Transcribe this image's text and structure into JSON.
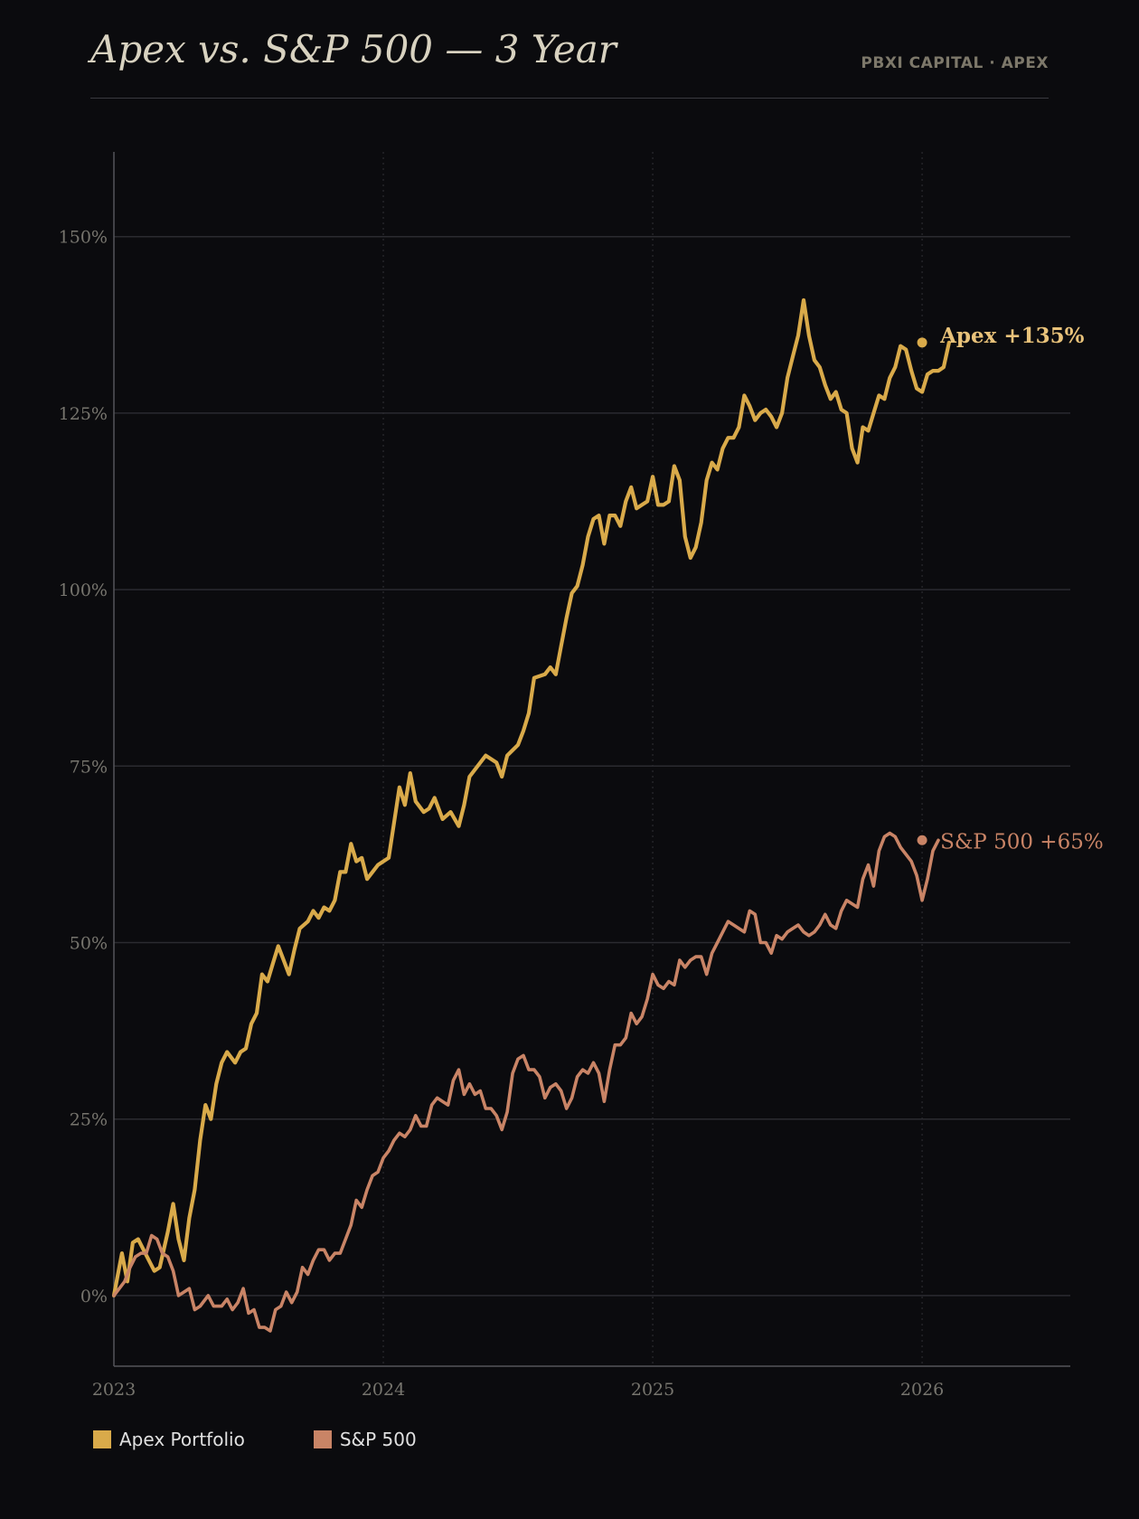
{
  "header": {
    "title": "Apex vs. S&P 500 — 3 Year",
    "brand": "PBXI CAPITAL · APEX"
  },
  "colors": {
    "background": "#0b0b0e",
    "apex": "#d9aa4a",
    "sp500": "#c98466",
    "grid": "#2b2b30",
    "axis": "#55555a",
    "tick_text": "#77756e"
  },
  "legend": {
    "apex_label": "Apex Portfolio",
    "sp500_label": "S&P 500"
  },
  "chart_data": {
    "type": "line",
    "xlim": [
      2023.0,
      2026.55
    ],
    "ylim": [
      -10,
      162
    ],
    "ytick_values": [
      0,
      25,
      50,
      75,
      100,
      125,
      150
    ],
    "ytick_labels": [
      "0%",
      "25%",
      "50%",
      "75%",
      "100%",
      "125%",
      "150%"
    ],
    "xtick_values": [
      2023,
      2024,
      2025,
      2026
    ],
    "xtick_labels": [
      "2023",
      "2024",
      "2025",
      "2026"
    ],
    "grid": true,
    "series": [
      {
        "name": "Apex Portfolio",
        "end_label": "Apex  +135%",
        "color": "#d9aa4a",
        "points": [
          [
            2023.0,
            0
          ],
          [
            2023.03,
            6
          ],
          [
            2023.05,
            2
          ],
          [
            2023.07,
            7.5
          ],
          [
            2023.09,
            8
          ],
          [
            2023.13,
            5
          ],
          [
            2023.15,
            3.5
          ],
          [
            2023.17,
            4
          ],
          [
            2023.2,
            9
          ],
          [
            2023.22,
            13
          ],
          [
            2023.24,
            8
          ],
          [
            2023.26,
            5
          ],
          [
            2023.28,
            11
          ],
          [
            2023.3,
            15
          ],
          [
            2023.32,
            22
          ],
          [
            2023.34,
            27
          ],
          [
            2023.36,
            25
          ],
          [
            2023.38,
            30
          ],
          [
            2023.4,
            33
          ],
          [
            2023.42,
            34.5
          ],
          [
            2023.45,
            33
          ],
          [
            2023.47,
            34.5
          ],
          [
            2023.49,
            35
          ],
          [
            2023.51,
            38.5
          ],
          [
            2023.53,
            40
          ],
          [
            2023.55,
            45.5
          ],
          [
            2023.57,
            44.5
          ],
          [
            2023.59,
            47
          ],
          [
            2023.61,
            49.5
          ],
          [
            2023.63,
            47.5
          ],
          [
            2023.65,
            45.5
          ],
          [
            2023.67,
            49
          ],
          [
            2023.69,
            52
          ],
          [
            2023.72,
            53
          ],
          [
            2023.74,
            54.5
          ],
          [
            2023.76,
            53.5
          ],
          [
            2023.78,
            55
          ],
          [
            2023.8,
            54.5
          ],
          [
            2023.82,
            56
          ],
          [
            2023.84,
            60
          ],
          [
            2023.86,
            60
          ],
          [
            2023.88,
            64
          ],
          [
            2023.9,
            61.5
          ],
          [
            2023.92,
            62
          ],
          [
            2023.94,
            59
          ],
          [
            2023.98,
            61
          ],
          [
            2024.02,
            62
          ],
          [
            2024.06,
            72
          ],
          [
            2024.08,
            69.5
          ],
          [
            2024.1,
            74
          ],
          [
            2024.12,
            70
          ],
          [
            2024.15,
            68.5
          ],
          [
            2024.17,
            69
          ],
          [
            2024.19,
            70.5
          ],
          [
            2024.22,
            67.5
          ],
          [
            2024.25,
            68.5
          ],
          [
            2024.28,
            66.5
          ],
          [
            2024.3,
            69.5
          ],
          [
            2024.32,
            73.5
          ],
          [
            2024.38,
            76.5
          ],
          [
            2024.42,
            75.5
          ],
          [
            2024.44,
            73.5
          ],
          [
            2024.46,
            76.5
          ],
          [
            2024.5,
            78
          ],
          [
            2024.52,
            80
          ],
          [
            2024.54,
            82.5
          ],
          [
            2024.56,
            87.5
          ],
          [
            2024.6,
            88
          ],
          [
            2024.62,
            89
          ],
          [
            2024.64,
            88
          ],
          [
            2024.66,
            92
          ],
          [
            2024.68,
            96
          ],
          [
            2024.7,
            99.5
          ],
          [
            2024.72,
            100.5
          ],
          [
            2024.74,
            103.5
          ],
          [
            2024.76,
            107.5
          ],
          [
            2024.78,
            110
          ],
          [
            2024.8,
            110.5
          ],
          [
            2024.82,
            106.5
          ],
          [
            2024.84,
            110.5
          ],
          [
            2024.86,
            110.5
          ],
          [
            2024.88,
            109
          ],
          [
            2024.9,
            112.5
          ],
          [
            2024.92,
            114.5
          ],
          [
            2024.94,
            111.5
          ],
          [
            2024.96,
            112
          ],
          [
            2024.98,
            112.5
          ],
          [
            2025.0,
            116
          ],
          [
            2025.02,
            112
          ],
          [
            2025.04,
            112
          ],
          [
            2025.06,
            112.5
          ],
          [
            2025.08,
            117.5
          ],
          [
            2025.1,
            115.5
          ],
          [
            2025.12,
            107.5
          ],
          [
            2025.14,
            104.5
          ],
          [
            2025.16,
            106
          ],
          [
            2025.18,
            109.5
          ],
          [
            2025.2,
            115.5
          ],
          [
            2025.22,
            118
          ],
          [
            2025.24,
            117
          ],
          [
            2025.26,
            120
          ],
          [
            2025.28,
            121.5
          ],
          [
            2025.3,
            121.5
          ],
          [
            2025.32,
            123
          ],
          [
            2025.34,
            127.5
          ],
          [
            2025.36,
            126
          ],
          [
            2025.38,
            124
          ],
          [
            2025.4,
            125
          ],
          [
            2025.42,
            125.5
          ],
          [
            2025.44,
            124.5
          ],
          [
            2025.46,
            123
          ],
          [
            2025.48,
            125
          ],
          [
            2025.5,
            130
          ],
          [
            2025.52,
            133
          ],
          [
            2025.54,
            136
          ],
          [
            2025.56,
            141
          ],
          [
            2025.58,
            136
          ],
          [
            2025.6,
            132.5
          ],
          [
            2025.62,
            131.5
          ],
          [
            2025.64,
            129
          ],
          [
            2025.66,
            127
          ],
          [
            2025.68,
            128
          ],
          [
            2025.7,
            125.5
          ],
          [
            2025.72,
            125
          ],
          [
            2025.74,
            120
          ],
          [
            2025.76,
            118
          ],
          [
            2025.78,
            123
          ],
          [
            2025.8,
            122.5
          ],
          [
            2025.82,
            125
          ],
          [
            2025.84,
            127.5
          ],
          [
            2025.86,
            127
          ],
          [
            2025.88,
            130
          ],
          [
            2025.9,
            131.5
          ],
          [
            2025.92,
            134.5
          ],
          [
            2025.94,
            134
          ],
          [
            2025.96,
            131
          ],
          [
            2025.98,
            128.5
          ],
          [
            2026.0,
            128
          ],
          [
            2026.02,
            130.5
          ],
          [
            2026.04,
            131
          ],
          [
            2026.06,
            131
          ],
          [
            2026.08,
            131.5
          ],
          [
            2026.1,
            135
          ]
        ]
      },
      {
        "name": "S&P 500",
        "end_label": "S&P 500  +65%",
        "color": "#c98466",
        "points": [
          [
            2023.0,
            0
          ],
          [
            2023.04,
            2
          ],
          [
            2023.06,
            4
          ],
          [
            2023.08,
            5.5
          ],
          [
            2023.1,
            6
          ],
          [
            2023.12,
            6
          ],
          [
            2023.14,
            8.5
          ],
          [
            2023.16,
            8
          ],
          [
            2023.18,
            6
          ],
          [
            2023.2,
            5.5
          ],
          [
            2023.22,
            3.5
          ],
          [
            2023.24,
            0
          ],
          [
            2023.26,
            0.5
          ],
          [
            2023.28,
            1
          ],
          [
            2023.3,
            -2
          ],
          [
            2023.32,
            -1.5
          ],
          [
            2023.35,
            0
          ],
          [
            2023.37,
            -1.5
          ],
          [
            2023.4,
            -1.5
          ],
          [
            2023.42,
            -0.5
          ],
          [
            2023.44,
            -2
          ],
          [
            2023.46,
            -1
          ],
          [
            2023.48,
            1
          ],
          [
            2023.5,
            -2.5
          ],
          [
            2023.52,
            -2
          ],
          [
            2023.54,
            -4.5
          ],
          [
            2023.56,
            -4.5
          ],
          [
            2023.58,
            -5
          ],
          [
            2023.6,
            -2
          ],
          [
            2023.62,
            -1.5
          ],
          [
            2023.64,
            0.5
          ],
          [
            2023.66,
            -1
          ],
          [
            2023.68,
            0.5
          ],
          [
            2023.7,
            4
          ],
          [
            2023.72,
            3
          ],
          [
            2023.74,
            5
          ],
          [
            2023.76,
            6.5
          ],
          [
            2023.78,
            6.5
          ],
          [
            2023.8,
            5
          ],
          [
            2023.82,
            6
          ],
          [
            2023.84,
            6
          ],
          [
            2023.86,
            8
          ],
          [
            2023.88,
            10
          ],
          [
            2023.9,
            13.5
          ],
          [
            2023.92,
            12.5
          ],
          [
            2023.94,
            15
          ],
          [
            2023.96,
            17
          ],
          [
            2023.98,
            17.5
          ],
          [
            2024.0,
            19.5
          ],
          [
            2024.02,
            20.5
          ],
          [
            2024.04,
            22
          ],
          [
            2024.06,
            23
          ],
          [
            2024.08,
            22.5
          ],
          [
            2024.1,
            23.5
          ],
          [
            2024.12,
            25.5
          ],
          [
            2024.14,
            24
          ],
          [
            2024.16,
            24
          ],
          [
            2024.18,
            27
          ],
          [
            2024.2,
            28
          ],
          [
            2024.22,
            27.5
          ],
          [
            2024.24,
            27
          ],
          [
            2024.26,
            30.5
          ],
          [
            2024.28,
            32
          ],
          [
            2024.3,
            28.5
          ],
          [
            2024.32,
            30
          ],
          [
            2024.34,
            28.5
          ],
          [
            2024.36,
            29
          ],
          [
            2024.38,
            26.5
          ],
          [
            2024.4,
            26.5
          ],
          [
            2024.42,
            25.5
          ],
          [
            2024.44,
            23.5
          ],
          [
            2024.46,
            26
          ],
          [
            2024.48,
            31.5
          ],
          [
            2024.5,
            33.5
          ],
          [
            2024.52,
            34
          ],
          [
            2024.54,
            32
          ],
          [
            2024.56,
            32
          ],
          [
            2024.58,
            31
          ],
          [
            2024.6,
            28
          ],
          [
            2024.62,
            29.5
          ],
          [
            2024.64,
            30
          ],
          [
            2024.66,
            29
          ],
          [
            2024.68,
            26.5
          ],
          [
            2024.7,
            28
          ],
          [
            2024.72,
            31
          ],
          [
            2024.74,
            32
          ],
          [
            2024.76,
            31.5
          ],
          [
            2024.78,
            33
          ],
          [
            2024.8,
            31.5
          ],
          [
            2024.82,
            27.5
          ],
          [
            2024.84,
            32
          ],
          [
            2024.86,
            35.5
          ],
          [
            2024.88,
            35.5
          ],
          [
            2024.9,
            36.5
          ],
          [
            2024.92,
            40
          ],
          [
            2024.94,
            38.5
          ],
          [
            2024.96,
            39.5
          ],
          [
            2024.98,
            42
          ],
          [
            2025.0,
            45.5
          ],
          [
            2025.02,
            44
          ],
          [
            2025.04,
            43.5
          ],
          [
            2025.06,
            44.5
          ],
          [
            2025.08,
            44
          ],
          [
            2025.1,
            47.5
          ],
          [
            2025.12,
            46.5
          ],
          [
            2025.14,
            47.5
          ],
          [
            2025.16,
            48
          ],
          [
            2025.18,
            48
          ],
          [
            2025.2,
            45.5
          ],
          [
            2025.22,
            48.5
          ],
          [
            2025.24,
            50
          ],
          [
            2025.26,
            51.5
          ],
          [
            2025.28,
            53
          ],
          [
            2025.3,
            52.5
          ],
          [
            2025.32,
            52
          ],
          [
            2025.34,
            51.5
          ],
          [
            2025.36,
            54.5
          ],
          [
            2025.38,
            54
          ],
          [
            2025.4,
            50
          ],
          [
            2025.42,
            50
          ],
          [
            2025.44,
            48.5
          ],
          [
            2025.46,
            51
          ],
          [
            2025.48,
            50.5
          ],
          [
            2025.5,
            51.5
          ],
          [
            2025.52,
            52
          ],
          [
            2025.54,
            52.5
          ],
          [
            2025.56,
            51.5
          ],
          [
            2025.58,
            51
          ],
          [
            2025.6,
            51.5
          ],
          [
            2025.62,
            52.5
          ],
          [
            2025.64,
            54
          ],
          [
            2025.66,
            52.5
          ],
          [
            2025.68,
            52
          ],
          [
            2025.7,
            54.5
          ],
          [
            2025.72,
            56
          ],
          [
            2025.74,
            55.5
          ],
          [
            2025.76,
            55
          ],
          [
            2025.78,
            59
          ],
          [
            2025.8,
            61
          ],
          [
            2025.82,
            58
          ],
          [
            2025.84,
            63
          ],
          [
            2025.86,
            65
          ],
          [
            2025.88,
            65.5
          ],
          [
            2025.9,
            65
          ],
          [
            2025.92,
            63.5
          ],
          [
            2025.94,
            62.5
          ],
          [
            2025.96,
            61.5
          ],
          [
            2025.98,
            59.5
          ],
          [
            2026.0,
            56
          ],
          [
            2026.02,
            59
          ],
          [
            2026.04,
            63
          ],
          [
            2026.06,
            64.5
          ]
        ]
      }
    ]
  }
}
